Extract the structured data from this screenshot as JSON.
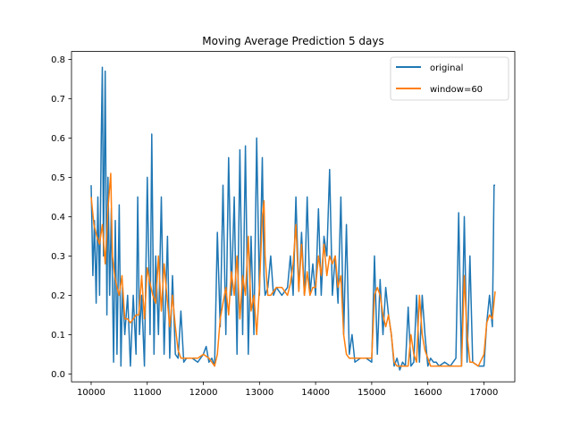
{
  "chart_data": {
    "type": "line",
    "title": "Moving Average Prediction 5 days",
    "xlabel": "",
    "ylabel": "",
    "xlim": [
      9650,
      17550
    ],
    "ylim": [
      -0.02,
      0.82
    ],
    "x_ticks": [
      10000,
      11000,
      12000,
      13000,
      14000,
      15000,
      16000,
      17000
    ],
    "y_ticks": [
      0.0,
      0.1,
      0.2,
      0.3,
      0.4,
      0.5,
      0.6,
      0.7,
      0.8
    ],
    "legend_position": "top-right",
    "grid": false,
    "series": [
      {
        "name": "original",
        "color": "#1f77b4",
        "x": [
          10000,
          10030,
          10060,
          10090,
          10120,
          10150,
          10180,
          10200,
          10220,
          10250,
          10280,
          10300,
          10330,
          10360,
          10400,
          10430,
          10460,
          10500,
          10530,
          10560,
          10600,
          10650,
          10700,
          10750,
          10800,
          10830,
          10860,
          10900,
          10950,
          11000,
          11050,
          11080,
          11120,
          11150,
          11200,
          11250,
          11300,
          11330,
          11360,
          11400,
          11450,
          11500,
          11550,
          11600,
          11650,
          11700,
          11800,
          11900,
          12000,
          12050,
          12100,
          12150,
          12200,
          12250,
          12300,
          12350,
          12400,
          12450,
          12500,
          12550,
          12600,
          12650,
          12700,
          12750,
          12800,
          12850,
          12900,
          12950,
          13000,
          13050,
          13080,
          13100,
          13150,
          13200,
          13250,
          13300,
          13400,
          13500,
          13550,
          13600,
          13650,
          13700,
          13750,
          13800,
          13850,
          13900,
          13950,
          14000,
          14050,
          14100,
          14150,
          14200,
          14250,
          14300,
          14350,
          14400,
          14450,
          14500,
          14550,
          14600,
          14650,
          14700,
          14800,
          14900,
          15000,
          15050,
          15100,
          15150,
          15200,
          15250,
          15300,
          15350,
          15400,
          15450,
          15500,
          15550,
          15600,
          15650,
          15700,
          15750,
          15800,
          15850,
          15900,
          15950,
          16000,
          16050,
          16100,
          16150,
          16200,
          16300,
          16400,
          16500,
          16550,
          16600,
          16650,
          16700,
          16750,
          16800,
          16900,
          17000,
          17050,
          17100,
          17150,
          17180,
          17200
        ],
        "values": [
          0.48,
          0.25,
          0.39,
          0.18,
          0.45,
          0.2,
          0.6,
          0.78,
          0.3,
          0.77,
          0.15,
          0.5,
          0.2,
          0.42,
          0.03,
          0.39,
          0.05,
          0.43,
          0.02,
          0.22,
          0.1,
          0.2,
          0.02,
          0.2,
          0.05,
          0.45,
          0.1,
          0.2,
          0.02,
          0.5,
          0.1,
          0.61,
          0.05,
          0.3,
          0.1,
          0.45,
          0.05,
          0.2,
          0.35,
          0.04,
          0.25,
          0.05,
          0.04,
          0.16,
          0.03,
          0.04,
          0.04,
          0.03,
          0.05,
          0.07,
          0.03,
          0.04,
          0.02,
          0.36,
          0.12,
          0.48,
          0.1,
          0.55,
          0.2,
          0.45,
          0.05,
          0.57,
          0.1,
          0.58,
          0.05,
          0.35,
          0.1,
          0.6,
          0.2,
          0.55,
          0.25,
          0.2,
          0.22,
          0.3,
          0.2,
          0.22,
          0.2,
          0.22,
          0.3,
          0.2,
          0.45,
          0.21,
          0.36,
          0.2,
          0.45,
          0.2,
          0.28,
          0.2,
          0.42,
          0.2,
          0.35,
          0.3,
          0.52,
          0.2,
          0.3,
          0.18,
          0.45,
          0.1,
          0.38,
          0.05,
          0.1,
          0.03,
          0.04,
          0.04,
          0.03,
          0.3,
          0.05,
          0.24,
          0.1,
          0.22,
          0.15,
          0.1,
          0.02,
          0.04,
          0.01,
          0.03,
          0.02,
          0.17,
          0.02,
          0.03,
          0.2,
          0.03,
          0.2,
          0.1,
          0.02,
          0.04,
          0.03,
          0.03,
          0.02,
          0.03,
          0.02,
          0.04,
          0.41,
          0.02,
          0.4,
          0.03,
          0.3,
          0.03,
          0.02,
          0.02,
          0.13,
          0.2,
          0.12,
          0.48,
          0.48
        ]
      },
      {
        "name": "window=60",
        "color": "#ff7f0e",
        "x": [
          10000,
          10050,
          10100,
          10150,
          10200,
          10250,
          10300,
          10350,
          10380,
          10420,
          10460,
          10500,
          10550,
          10600,
          10650,
          10700,
          10750,
          10800,
          10850,
          10900,
          10950,
          11000,
          11050,
          11100,
          11150,
          11200,
          11250,
          11300,
          11350,
          11400,
          11450,
          11500,
          11550,
          11600,
          11650,
          11700,
          11800,
          11900,
          12000,
          12100,
          12150,
          12200,
          12250,
          12300,
          12350,
          12400,
          12450,
          12500,
          12550,
          12600,
          12650,
          12700,
          12750,
          12800,
          12850,
          12900,
          12950,
          13000,
          13050,
          13080,
          13100,
          13150,
          13200,
          13300,
          13400,
          13500,
          13550,
          13600,
          13650,
          13700,
          13750,
          13800,
          13850,
          13900,
          13950,
          14000,
          14050,
          14100,
          14150,
          14200,
          14250,
          14300,
          14350,
          14400,
          14450,
          14500,
          14550,
          14600,
          14650,
          14700,
          14800,
          14900,
          14950,
          15000,
          15050,
          15100,
          15150,
          15200,
          15250,
          15300,
          15350,
          15400,
          15450,
          15500,
          15550,
          15600,
          15650,
          15700,
          15750,
          15800,
          15850,
          15900,
          15950,
          16000,
          16050,
          16100,
          16150,
          16200,
          16300,
          16400,
          16500,
          16550,
          16600,
          16650,
          16700,
          16750,
          16800,
          16900,
          17000,
          17050,
          17100,
          17150,
          17200
        ],
        "values": [
          0.45,
          0.38,
          0.35,
          0.33,
          0.38,
          0.28,
          0.42,
          0.51,
          0.3,
          0.25,
          0.22,
          0.2,
          0.25,
          0.14,
          0.14,
          0.13,
          0.14,
          0.15,
          0.15,
          0.25,
          0.14,
          0.27,
          0.23,
          0.2,
          0.18,
          0.3,
          0.16,
          0.28,
          0.2,
          0.12,
          0.2,
          0.12,
          0.06,
          0.04,
          0.04,
          0.04,
          0.04,
          0.04,
          0.05,
          0.04,
          0.03,
          0.02,
          0.05,
          0.14,
          0.18,
          0.22,
          0.15,
          0.26,
          0.2,
          0.3,
          0.14,
          0.25,
          0.2,
          0.35,
          0.16,
          0.2,
          0.1,
          0.22,
          0.4,
          0.44,
          0.3,
          0.2,
          0.2,
          0.22,
          0.22,
          0.2,
          0.23,
          0.28,
          0.38,
          0.21,
          0.33,
          0.2,
          0.26,
          0.2,
          0.22,
          0.22,
          0.3,
          0.25,
          0.33,
          0.25,
          0.3,
          0.28,
          0.3,
          0.22,
          0.25,
          0.1,
          0.05,
          0.04,
          0.04,
          0.04,
          0.04,
          0.04,
          0.04,
          0.04,
          0.2,
          0.22,
          0.2,
          0.15,
          0.12,
          0.15,
          0.1,
          0.03,
          0.02,
          0.02,
          0.02,
          0.02,
          0.02,
          0.1,
          0.05,
          0.03,
          0.2,
          0.1,
          0.06,
          0.04,
          0.02,
          0.02,
          0.02,
          0.02,
          0.02,
          0.02,
          0.02,
          0.02,
          0.02,
          0.25,
          0.1,
          0.03,
          0.03,
          0.02,
          0.05,
          0.13,
          0.15,
          0.14,
          0.21
        ]
      }
    ]
  }
}
